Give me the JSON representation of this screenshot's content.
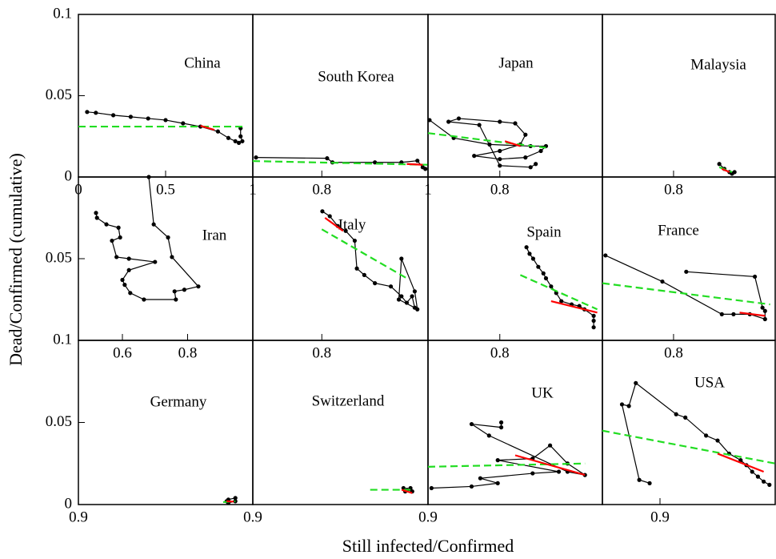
{
  "axis_titles": {
    "x": "Still infected/Confirmed",
    "y": "Dead/Confirmed (cumulative)"
  },
  "chart_data": [
    {
      "type": "line",
      "title": "China",
      "xlim": [
        0,
        1
      ],
      "ylim": [
        0,
        0.1
      ],
      "xticks": [
        0,
        0.5,
        1
      ],
      "yticks": [
        0,
        0.05,
        0.1
      ],
      "series": [
        {
          "color": "#000000",
          "marker": "dot",
          "x": [
            0.05,
            0.1,
            0.2,
            0.3,
            0.4,
            0.5,
            0.6,
            0.7,
            0.8,
            0.86,
            0.9,
            0.92,
            0.94,
            0.93,
            0.93
          ],
          "values": [
            0.04,
            0.0395,
            0.038,
            0.037,
            0.036,
            0.035,
            0.033,
            0.031,
            0.028,
            0.024,
            0.022,
            0.021,
            0.022,
            0.025,
            0.03
          ]
        },
        {
          "color": "#22dd22",
          "style": "dashed",
          "x": [
            0,
            0.95
          ],
          "values": [
            0.031,
            0.031
          ]
        },
        {
          "color": "#ff0000",
          "style": "solid",
          "x": [
            0.7,
            0.78
          ],
          "values": [
            0.0315,
            0.029
          ]
        }
      ]
    },
    {
      "type": "line",
      "title": "South Korea",
      "xlim": [
        0.67,
        1
      ],
      "ylim": [
        0,
        0.1
      ],
      "xticks": [
        0.8,
        1
      ],
      "yticks": [],
      "series": [
        {
          "color": "#000000",
          "marker": "dot",
          "x": [
            0.676,
            0.81,
            0.82,
            0.9,
            0.95,
            0.98,
            0.99,
            0.995
          ],
          "values": [
            0.012,
            0.0115,
            0.009,
            0.009,
            0.009,
            0.01,
            0.006,
            0.005
          ]
        },
        {
          "color": "#22dd22",
          "style": "dashed",
          "x": [
            0.67,
            1
          ],
          "values": [
            0.0098,
            0.0075
          ]
        },
        {
          "color": "#ff0000",
          "style": "solid",
          "x": [
            0.96,
            0.99
          ],
          "values": [
            0.008,
            0.0075
          ]
        }
      ]
    },
    {
      "type": "line",
      "title": "Japan",
      "xlim": [
        0.66,
        1
      ],
      "ylim": [
        0,
        0.1
      ],
      "xticks": [
        0.8
      ],
      "yticks": [],
      "series": [
        {
          "color": "#000000",
          "marker": "dot",
          "x": [
            0.663,
            0.71,
            0.78,
            0.86,
            0.89,
            0.88,
            0.85,
            0.8,
            0.75,
            0.8,
            0.84,
            0.85,
            0.83,
            0.8,
            0.72,
            0.7,
            0.76,
            0.8,
            0.86,
            0.87
          ],
          "values": [
            0.035,
            0.024,
            0.02,
            0.019,
            0.019,
            0.016,
            0.012,
            0.011,
            0.013,
            0.016,
            0.02,
            0.026,
            0.033,
            0.034,
            0.036,
            0.034,
            0.032,
            0.007,
            0.006,
            0.008
          ]
        },
        {
          "color": "#22dd22",
          "style": "dashed",
          "x": [
            0.66,
            0.89
          ],
          "values": [
            0.027,
            0.018
          ]
        },
        {
          "color": "#ff0000",
          "style": "solid",
          "x": [
            0.81,
            0.84
          ],
          "values": [
            0.022,
            0.019
          ]
        }
      ]
    },
    {
      "type": "line",
      "title": "Malaysia",
      "xlim": [
        0.66,
        1
      ],
      "ylim": [
        0,
        0.1
      ],
      "xticks": [
        0.8
      ],
      "yticks": [],
      "series": [
        {
          "color": "#000000",
          "marker": "dot",
          "x": [
            0.89,
            0.9,
            0.91,
            0.92,
            0.915
          ],
          "values": [
            0.008,
            0.005,
            0.003,
            0.003,
            0.002
          ]
        },
        {
          "color": "#22dd22",
          "style": "dashed",
          "x": [
            0.89,
            0.915
          ],
          "values": [
            0.006,
            0.003
          ]
        },
        {
          "color": "#ff0000",
          "style": "solid",
          "x": [
            0.895,
            0.91
          ],
          "values": [
            0.005,
            0.003
          ]
        }
      ]
    },
    {
      "type": "line",
      "title": "Iran",
      "xlim": [
        0.465,
        1
      ],
      "ylim": [
        0,
        0.1
      ],
      "xticks": [
        0.6,
        0.8
      ],
      "yticks": [
        0.05
      ],
      "series": [
        {
          "color": "#000000",
          "marker": "dot",
          "x": [
            0.519,
            0.522,
            0.551,
            0.588,
            0.593,
            0.568,
            0.582,
            0.62,
            0.7,
            0.62,
            0.6,
            0.607,
            0.624,
            0.666,
            0.764,
            0.76,
            0.79,
            0.833,
            0.752,
            0.74,
            0.696,
            0.681
          ],
          "values": [
            0.078,
            0.075,
            0.071,
            0.069,
            0.063,
            0.061,
            0.051,
            0.05,
            0.048,
            0.043,
            0.037,
            0.034,
            0.029,
            0.025,
            0.025,
            0.03,
            0.031,
            0.033,
            0.051,
            0.063,
            0.071,
            0.1
          ]
        }
      ]
    },
    {
      "type": "line",
      "title": "Italy",
      "xlim": [
        0.67,
        1
      ],
      "ylim": [
        0,
        0.1
      ],
      "xticks": [
        0.8
      ],
      "yticks": [],
      "series": [
        {
          "color": "#000000",
          "marker": "dot",
          "x": [
            0.801,
            0.815,
            0.83,
            0.845,
            0.862,
            0.866,
            0.88,
            0.9,
            0.93,
            0.95,
            0.96,
            0.97,
            0.975,
            0.945,
            0.95,
            0.975,
            0.98
          ],
          "values": [
            0.079,
            0.076,
            0.07,
            0.067,
            0.061,
            0.044,
            0.04,
            0.035,
            0.033,
            0.027,
            0.023,
            0.027,
            0.02,
            0.025,
            0.05,
            0.03,
            0.019
          ]
        },
        {
          "color": "#22dd22",
          "style": "dashed",
          "x": [
            0.8,
            0.96
          ],
          "values": [
            0.068,
            0.038
          ]
        },
        {
          "color": "#ff0000",
          "style": "solid",
          "x": [
            0.806,
            0.84
          ],
          "values": [
            0.075,
            0.067
          ]
        }
      ]
    },
    {
      "type": "line",
      "title": "Spain",
      "xlim": [
        0.66,
        1
      ],
      "ylim": [
        0,
        0.1
      ],
      "xticks": [
        0.8
      ],
      "yticks": [],
      "series": [
        {
          "color": "#000000",
          "marker": "dot",
          "x": [
            0.852,
            0.858,
            0.865,
            0.875,
            0.885,
            0.89,
            0.9,
            0.91,
            0.92,
            0.94,
            0.955,
            0.965,
            0.983,
            0.983,
            0.983
          ],
          "values": [
            0.057,
            0.053,
            0.05,
            0.045,
            0.041,
            0.038,
            0.033,
            0.029,
            0.024,
            0.022,
            0.021,
            0.019,
            0.015,
            0.012,
            0.008
          ]
        },
        {
          "color": "#22dd22",
          "style": "dashed",
          "x": [
            0.84,
            0.99
          ],
          "values": [
            0.04,
            0.019
          ]
        },
        {
          "color": "#ff0000",
          "style": "solid",
          "x": [
            0.9,
            0.99
          ],
          "values": [
            0.024,
            0.017
          ]
        }
      ]
    },
    {
      "type": "line",
      "title": "France",
      "xlim": [
        0.66,
        1
      ],
      "ylim": [
        0,
        0.1
      ],
      "xticks": [
        0.8
      ],
      "yticks": [],
      "series": [
        {
          "color": "#000000",
          "marker": "dot",
          "x": [
            0.666,
            0.778,
            0.895,
            0.918,
            0.95,
            0.98,
            0.98,
            0.975,
            0.96,
            0.825
          ],
          "values": [
            0.052,
            0.036,
            0.016,
            0.016,
            0.016,
            0.013,
            0.018,
            0.02,
            0.039,
            0.042
          ]
        },
        {
          "color": "#22dd22",
          "style": "dashed",
          "x": [
            0.66,
            0.99
          ],
          "values": [
            0.035,
            0.022
          ]
        },
        {
          "color": "#ff0000",
          "style": "solid",
          "x": [
            0.93,
            0.98
          ],
          "values": [
            0.017,
            0.015
          ]
        }
      ]
    },
    {
      "type": "line",
      "title": "Germany",
      "xlim": [
        0.9,
        1
      ],
      "ylim": [
        0,
        0.1
      ],
      "xticks": [
        0.9
      ],
      "yticks": [
        0,
        0.05,
        0.1
      ],
      "series": [
        {
          "color": "#000000",
          "marker": "dot",
          "x": [
            0.985,
            0.986,
            0.99,
            0.99,
            0.986
          ],
          "values": [
            0.002,
            0.003,
            0.004,
            0.002,
            0.001
          ]
        },
        {
          "color": "#22dd22",
          "style": "dashed",
          "x": [
            0.983,
            0.99
          ],
          "values": [
            0.0015,
            0.002
          ]
        },
        {
          "color": "#ff0000",
          "style": "solid",
          "x": [
            0.985,
            0.989
          ],
          "values": [
            0.002,
            0.0018
          ]
        }
      ]
    },
    {
      "type": "line",
      "title": "Switzerland",
      "xlim": [
        0.9,
        1
      ],
      "ylim": [
        0,
        0.1
      ],
      "xticks": [
        0.9
      ],
      "yticks": [],
      "series": [
        {
          "color": "#000000",
          "marker": "dot",
          "x": [
            0.986,
            0.988,
            0.991,
            0.99,
            0.987
          ],
          "values": [
            0.01,
            0.009,
            0.008,
            0.01,
            0.008
          ]
        },
        {
          "color": "#22dd22",
          "style": "dashed",
          "x": [
            0.967,
            0.99
          ],
          "values": [
            0.009,
            0.009
          ]
        },
        {
          "color": "#ff0000",
          "style": "solid",
          "x": [
            0.985,
            0.991
          ],
          "values": [
            0.009,
            0.007
          ]
        }
      ]
    },
    {
      "type": "line",
      "title": "UK",
      "xlim": [
        0.9,
        1
      ],
      "ylim": [
        0,
        0.1
      ],
      "xticks": [
        0.9
      ],
      "yticks": [],
      "series": [
        {
          "color": "#000000",
          "marker": "dot",
          "x": [
            0.902,
            0.925,
            0.94,
            0.93,
            0.96,
            0.975,
            0.94,
            0.96,
            0.97,
            0.98,
            0.99,
            0.98,
            0.935,
            0.925,
            0.942,
            0.942
          ],
          "values": [
            0.01,
            0.011,
            0.013,
            0.016,
            0.019,
            0.02,
            0.027,
            0.028,
            0.036,
            0.025,
            0.018,
            0.02,
            0.042,
            0.049,
            0.047,
            0.05
          ]
        },
        {
          "color": "#22dd22",
          "style": "dashed",
          "x": [
            0.9,
            0.99
          ],
          "values": [
            0.023,
            0.025
          ]
        },
        {
          "color": "#ff0000",
          "style": "solid",
          "x": [
            0.95,
            0.99
          ],
          "values": [
            0.03,
            0.018
          ]
        }
      ]
    },
    {
      "type": "line",
      "title": "USA",
      "xlim": [
        0.85,
        1
      ],
      "ylim": [
        0,
        0.1
      ],
      "xticks": [
        0.9
      ],
      "yticks": [],
      "series": [
        {
          "color": "#000000",
          "marker": "dot",
          "x": [
            0.891,
            0.882,
            0.867,
            0.873,
            0.879,
            0.914,
            0.922,
            0.94,
            0.95,
            0.96,
            0.97,
            0.975,
            0.98,
            0.985,
            0.99,
            0.995
          ],
          "values": [
            0.013,
            0.015,
            0.061,
            0.06,
            0.074,
            0.055,
            0.053,
            0.042,
            0.039,
            0.031,
            0.027,
            0.024,
            0.02,
            0.017,
            0.014,
            0.012
          ]
        },
        {
          "color": "#22dd22",
          "style": "dashed",
          "x": [
            0.85,
            1
          ],
          "values": [
            0.045,
            0.025
          ]
        },
        {
          "color": "#ff0000",
          "style": "solid",
          "x": [
            0.95,
            0.99
          ],
          "values": [
            0.031,
            0.02
          ]
        }
      ]
    }
  ]
}
